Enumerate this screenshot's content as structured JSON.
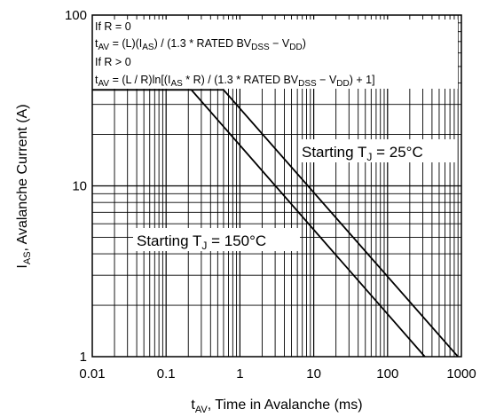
{
  "chart_data": {
    "type": "line",
    "title": "",
    "xscale": "log",
    "yscale": "log",
    "xlim": [
      0.01,
      1000
    ],
    "ylim": [
      1,
      100
    ],
    "grid": true,
    "xlabel": {
      "main": "t",
      "sub": "AV",
      "rest": ", Time in Avalanche (ms)"
    },
    "ylabel": {
      "main": "I",
      "sub": "AS",
      "rest": ", Avalanche Current (A)"
    },
    "xticks": [
      {
        "value": 0.01,
        "label": "0.01"
      },
      {
        "value": 0.1,
        "label": "0.1"
      },
      {
        "value": 1,
        "label": "1"
      },
      {
        "value": 10,
        "label": "10"
      },
      {
        "value": 100,
        "label": "100"
      },
      {
        "value": 1000,
        "label": "1000"
      }
    ],
    "yticks": [
      {
        "value": 1,
        "label": "1"
      },
      {
        "value": 10,
        "label": "10"
      },
      {
        "value": 100,
        "label": "100"
      }
    ],
    "series": [
      {
        "label": {
          "main": "Starting T",
          "sub": "J",
          "rest": " = 25°C"
        },
        "points": [
          [
            0.01,
            36.5
          ],
          [
            0.6,
            36.5
          ],
          [
            900,
            1
          ]
        ]
      },
      {
        "label": {
          "main": "Starting T",
          "sub": "J",
          "rest": " = 150°C"
        },
        "points": [
          [
            0.01,
            36.5
          ],
          [
            0.22,
            36.5
          ],
          [
            320,
            1
          ]
        ]
      }
    ],
    "annotations": [
      "If R = 0",
      "t_AV = (L)(I_AS) / (1.3 * RATED BV_DSS − V_DD)",
      "If R > 0",
      "t_AV = (L / R)ln[(I_AS * R) / (1.3 * RATED BV_DSS − V_DD) + 1]"
    ]
  }
}
